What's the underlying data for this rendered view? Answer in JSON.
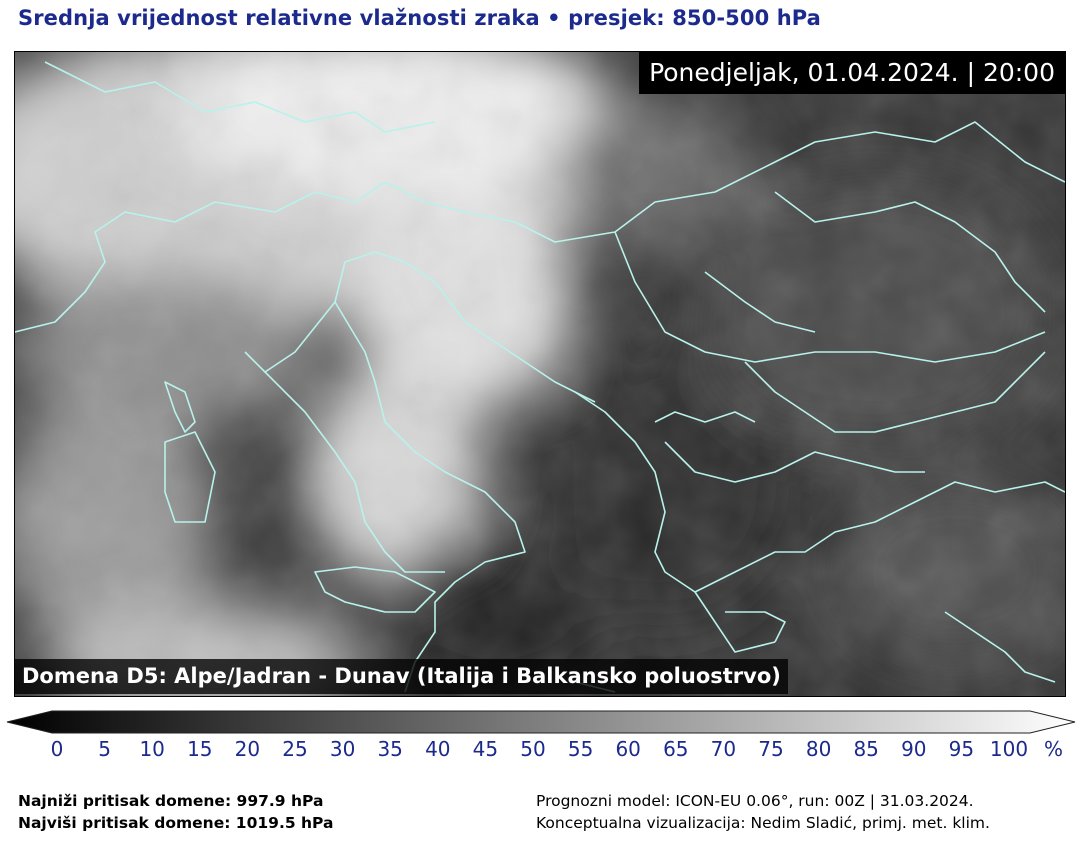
{
  "header": {
    "title": "Srednja vrijednost relativne vlažnosti zraka • presjek: 850-500 hPa"
  },
  "map": {
    "datetime": "Ponedjeljak, 01.04.2024. | 20:00",
    "domain_label": "Domena D5: Alpe/Jadran - Dunav (Italija i Balkansko poluostrvo)",
    "field": "relative humidity",
    "border_color": "#b8f2ea"
  },
  "colorbar": {
    "ticks": [
      "0",
      "5",
      "10",
      "15",
      "20",
      "25",
      "30",
      "35",
      "40",
      "45",
      "50",
      "55",
      "60",
      "65",
      "70",
      "75",
      "80",
      "85",
      "90",
      "95",
      "100"
    ],
    "unit": "%",
    "color_min": "#000000",
    "color_max": "#ffffff"
  },
  "footer": {
    "min_pressure": "Najniži pritisak domene: 997.9 hPa",
    "max_pressure": "Najviši pritisak domene: 1019.5 hPa",
    "model": "Prognozni model: ICON-EU 0.06°, run: 00Z | 31.03.2024.",
    "credit": "Konceptualna vizualizacija: Nedim Sladić, primj. met. klim."
  }
}
